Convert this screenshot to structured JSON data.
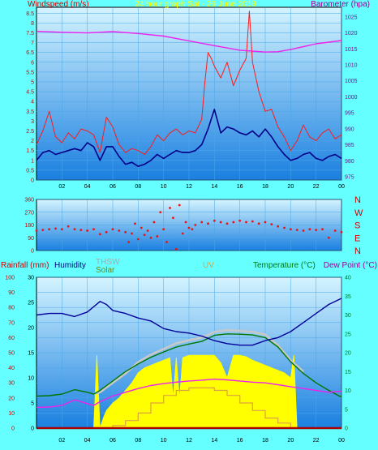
{
  "colors": {
    "page_bg": "#66ffff",
    "plot_top": "#d4f4ff",
    "plot_bottom": "#1a7fe0",
    "wind_speed": "#ff1a1a",
    "wind_avg": "#000088",
    "barometer": "#ee22ee",
    "wind_dir": "#ee1111",
    "rainfall": "#aa0000",
    "humidity": "#000099",
    "thsw": "#c8c8c8",
    "solar": "#ffff00",
    "uv": "#e0a040",
    "temperature": "#007700",
    "dew_point": "#ee22ee",
    "axis_red": "#cc0000",
    "axis_green": "#007700",
    "axis_purple": "#990099",
    "axis_black": "#000000"
  },
  "top": {
    "title": "24 hour graph Sat - 29 June 2019",
    "left_label": "Windspeed (m/s)",
    "right_label": "Barometer (hpa)",
    "y_left_ticks": [
      "0",
      "0.5",
      "1",
      "1.5",
      "2",
      "2.5",
      "3",
      "3.5",
      "4",
      "4.5",
      "5",
      "5.5",
      "6",
      "6.5",
      "7",
      "7.5",
      "8",
      "8.5"
    ],
    "y_right_ticks": [
      "975",
      "980",
      "985",
      "990",
      "995",
      "1000",
      "1005",
      "1010",
      "1015",
      "1020",
      "1025"
    ],
    "x_ticks": [
      "02",
      "04",
      "06",
      "08",
      "10",
      "12",
      "14",
      "16",
      "18",
      "20",
      "22",
      "00"
    ]
  },
  "middle": {
    "y_ticks": [
      "0",
      "90",
      "180",
      "270",
      "360"
    ],
    "compass": [
      "N",
      "W",
      "S",
      "E",
      "N"
    ]
  },
  "bottom": {
    "labels": {
      "rainfall": "Rainfall (mm)",
      "humidity": "Humidity",
      "thsw": "THSW",
      "solar": "Solar",
      "uv": "UV",
      "temperature": "Temperature (°C)",
      "dew_point": "Dew Point (°C)"
    },
    "y_left_outer_ticks": [
      "0",
      "10",
      "20",
      "30",
      "40",
      "50",
      "60",
      "70",
      "80",
      "90",
      "100"
    ],
    "y_left_inner_ticks": [
      "0",
      "5",
      "10",
      "15",
      "20",
      "25",
      "30"
    ],
    "y_right_ticks": [
      "0",
      "5",
      "10",
      "15",
      "20",
      "25",
      "30",
      "35",
      "40"
    ],
    "x_ticks": [
      "02",
      "04",
      "06",
      "08",
      "10",
      "12",
      "14",
      "16",
      "18",
      "20",
      "22",
      "00"
    ]
  },
  "chart_data": [
    {
      "type": "line",
      "title": "24 hour graph Sat - 29 June 2019",
      "xlabel": "",
      "ylabel": "Windspeed (m/s)",
      "y2label": "Barometer (hpa)",
      "x_categories": [
        "02",
        "04",
        "06",
        "08",
        "10",
        "12",
        "14",
        "16",
        "18",
        "20",
        "22",
        "00"
      ],
      "ylim": [
        0,
        8.8
      ],
      "y2lim": [
        974,
        1028
      ],
      "grid": true,
      "series": [
        {
          "name": "Windspeed (m/s)",
          "axis": "left",
          "x": [
            0,
            0.5,
            1,
            1.5,
            2,
            2.5,
            3,
            3.5,
            4,
            4.5,
            5,
            5.5,
            6,
            6.5,
            7,
            7.5,
            8,
            8.5,
            9,
            9.5,
            10,
            10.5,
            11,
            11.5,
            12,
            12.5,
            13,
            13.25,
            13.5,
            13.75,
            14,
            14.5,
            15,
            15.5,
            16,
            16.5,
            16.75,
            17,
            17.5,
            18,
            18.5,
            19,
            19.5,
            20,
            20.5,
            21,
            21.5,
            22,
            22.5,
            23,
            23.5,
            24
          ],
          "y": [
            1.8,
            2.5,
            3.5,
            2.2,
            1.9,
            2.4,
            2.1,
            2.6,
            2.5,
            2.3,
            1.4,
            3.2,
            2.7,
            1.8,
            1.4,
            1.6,
            1.5,
            1.3,
            1.7,
            2.3,
            2.0,
            2.4,
            2.6,
            2.3,
            2.5,
            2.4,
            3.1,
            5.0,
            6.5,
            6.2,
            5.8,
            5.2,
            6.0,
            4.8,
            5.6,
            6.2,
            8.6,
            6.0,
            4.5,
            3.5,
            3.6,
            2.7,
            2.2,
            1.5,
            2.0,
            2.8,
            2.2,
            2.0,
            2.4,
            2.6,
            2.1,
            2.3
          ]
        },
        {
          "name": "Wind average",
          "axis": "left",
          "x": [
            0,
            0.5,
            1,
            1.5,
            2,
            2.5,
            3,
            3.5,
            4,
            4.5,
            5,
            5.5,
            6,
            6.5,
            7,
            7.5,
            8,
            8.5,
            9,
            9.5,
            10,
            10.5,
            11,
            11.5,
            12,
            12.5,
            13,
            13.5,
            14,
            14.5,
            15,
            15.5,
            16,
            16.5,
            17,
            17.5,
            18,
            18.5,
            19,
            19.5,
            20,
            20.5,
            21,
            21.5,
            22,
            22.5,
            23,
            23.5,
            24
          ],
          "y": [
            1.0,
            1.4,
            1.5,
            1.3,
            1.4,
            1.5,
            1.6,
            1.5,
            1.9,
            1.7,
            1.0,
            1.7,
            1.7,
            1.2,
            0.8,
            0.9,
            0.7,
            0.8,
            1.0,
            1.3,
            1.1,
            1.3,
            1.5,
            1.4,
            1.4,
            1.5,
            1.8,
            2.6,
            3.6,
            2.4,
            2.7,
            2.6,
            2.4,
            2.3,
            2.5,
            2.2,
            2.6,
            2.2,
            1.7,
            1.3,
            1.0,
            1.1,
            1.3,
            1.4,
            1.1,
            1.0,
            1.2,
            1.3,
            1.1
          ]
        },
        {
          "name": "Barometer (hpa)",
          "axis": "right",
          "x": [
            0,
            2,
            4,
            6,
            8,
            10,
            12,
            14,
            16,
            18,
            19,
            20,
            22,
            24
          ],
          "y": [
            1020.5,
            1020.2,
            1020.0,
            1020.4,
            1019.8,
            1019.0,
            1017.5,
            1016.0,
            1014.6,
            1014.0,
            1014.1,
            1014.8,
            1016.6,
            1017.6
          ]
        }
      ]
    },
    {
      "type": "scatter",
      "title": "",
      "ylabel": "",
      "y_ticks": [
        0,
        90,
        180,
        270,
        360
      ],
      "compass_labels": [
        "N",
        "W",
        "S",
        "E",
        "N"
      ],
      "ylim": [
        0,
        360
      ],
      "series": [
        {
          "name": "Wind direction",
          "x": [
            0,
            0.5,
            1,
            1.5,
            2,
            2.5,
            3,
            3.5,
            4,
            4.5,
            5,
            5.5,
            6,
            6.5,
            7,
            7.25,
            7.5,
            7.75,
            8,
            8.25,
            8.5,
            8.75,
            9,
            9.25,
            9.5,
            9.75,
            10,
            10.25,
            10.5,
            10.75,
            11,
            11.25,
            11.5,
            11.75,
            12,
            12.25,
            12.5,
            13,
            13.5,
            14,
            14.5,
            15,
            15.5,
            16,
            16.5,
            17,
            17.5,
            18,
            18.5,
            19,
            19.5,
            20,
            20.5,
            21,
            21.5,
            22,
            22.5,
            23,
            23.5,
            24
          ],
          "y": [
            140,
            145,
            150,
            155,
            150,
            170,
            150,
            145,
            140,
            150,
            115,
            130,
            150,
            140,
            130,
            60,
            120,
            190,
            80,
            160,
            110,
            140,
            90,
            200,
            100,
            270,
            150,
            60,
            300,
            230,
            10,
            320,
            120,
            200,
            160,
            150,
            180,
            200,
            190,
            210,
            200,
            190,
            200,
            210,
            200,
            205,
            190,
            200,
            185,
            170,
            160,
            150,
            145,
            140,
            150,
            145,
            150,
            90,
            140,
            130
          ]
        }
      ]
    },
    {
      "type": "line",
      "title": "",
      "ylabel": "Rainfall (mm) / Humidity",
      "y2label": "Temperature (°C) / Dew Point (°C)",
      "x_categories": [
        "02",
        "04",
        "06",
        "08",
        "10",
        "12",
        "14",
        "16",
        "18",
        "20",
        "22",
        "00"
      ],
      "ylim": [
        0,
        100
      ],
      "y_inner_lim": [
        0,
        30
      ],
      "y2lim": [
        0,
        40
      ],
      "grid": true,
      "series": [
        {
          "name": "Humidity",
          "axis": "left",
          "x": [
            0,
            1,
            2,
            3,
            4,
            5,
            5.5,
            6,
            7,
            8,
            9,
            10,
            11,
            12,
            13,
            14,
            15,
            16,
            17,
            18,
            19,
            20,
            21,
            22,
            23,
            24
          ],
          "y": [
            75,
            76,
            76,
            74,
            77,
            84,
            82,
            78,
            76,
            73,
            71,
            66,
            64,
            63,
            61,
            58,
            56,
            55,
            55,
            58,
            60,
            64,
            70,
            76,
            82,
            86
          ]
        },
        {
          "name": "Temperature (°C)",
          "axis": "right",
          "x": [
            0,
            1,
            2,
            3,
            4,
            4.5,
            5,
            6,
            7,
            8,
            9,
            10,
            11,
            12,
            13,
            14,
            15,
            16,
            17,
            18,
            19,
            20,
            21,
            22,
            23,
            24
          ],
          "y": [
            8.5,
            8.6,
            9.0,
            10.2,
            9.5,
            9.0,
            10.0,
            12.5,
            15.0,
            17.0,
            18.8,
            20.2,
            21.5,
            22.3,
            23.0,
            24.6,
            25.0,
            24.9,
            24.7,
            24.0,
            21.5,
            17.6,
            14.5,
            12.0,
            10.0,
            8.2
          ]
        },
        {
          "name": "THSW",
          "axis": "right",
          "x": [
            4.5,
            5,
            6,
            7,
            8,
            9,
            10,
            11,
            12,
            13,
            14,
            15,
            16,
            17,
            18,
            19,
            20,
            21
          ],
          "y": [
            9.0,
            9.5,
            12.0,
            14.5,
            17.5,
            19.5,
            21.0,
            22.5,
            23.3,
            24.0,
            25.5,
            26.0,
            25.8,
            25.5,
            24.8,
            22.0,
            18.0,
            15.0
          ]
        },
        {
          "name": "Dew Point (°C)",
          "axis": "right",
          "x": [
            0,
            1,
            2,
            3,
            4,
            4.5,
            5,
            6,
            7,
            8,
            9,
            10,
            11,
            12,
            13,
            14,
            15,
            16,
            17,
            18,
            19,
            20,
            21,
            22,
            23,
            24
          ],
          "y": [
            5.5,
            5.6,
            6.0,
            7.5,
            6.5,
            6.0,
            7.0,
            8.5,
            9.5,
            10.5,
            11.3,
            11.8,
            12.2,
            12.5,
            12.7,
            13.0,
            12.8,
            12.5,
            12.2,
            12.0,
            11.5,
            11.0,
            10.5,
            10.0,
            9.5,
            9.8
          ]
        },
        {
          "name": "Solar",
          "axis": "left_inner",
          "x": [
            4.5,
            4.75,
            5,
            5.25,
            5.5,
            6,
            6.5,
            7,
            7.5,
            8,
            8.5,
            9,
            9.5,
            10,
            10.5,
            10.75,
            11,
            11.25,
            11.5,
            12,
            12.5,
            13,
            13.5,
            14,
            14.5,
            15,
            15.5,
            16,
            16.5,
            17,
            17.5,
            18,
            18.5,
            19,
            19.5,
            20,
            20.25,
            20.5
          ],
          "y": [
            0,
            14.5,
            0,
            2,
            3.5,
            5,
            6,
            7.5,
            9,
            11,
            12,
            12.5,
            13,
            13.5,
            14,
            6,
            14,
            6,
            14,
            14.5,
            14.5,
            14.5,
            14.5,
            14.5,
            13,
            10,
            14.5,
            14.5,
            14.2,
            13.5,
            13,
            12.5,
            12,
            11.5,
            11,
            10,
            14.5,
            0
          ]
        },
        {
          "name": "UV",
          "axis": "left_inner",
          "x": [
            5,
            6,
            7,
            8,
            9,
            10,
            11,
            12,
            13,
            14,
            15,
            16,
            17,
            18,
            19,
            20
          ],
          "y": [
            0,
            0.5,
            1.5,
            3,
            5,
            6.5,
            7.5,
            8,
            8,
            7.5,
            6.5,
            5,
            3.5,
            2,
            1,
            0
          ]
        },
        {
          "name": "Rainfall (mm)",
          "axis": "left",
          "x": [
            0,
            24
          ],
          "y": [
            0,
            0
          ]
        }
      ]
    }
  ]
}
